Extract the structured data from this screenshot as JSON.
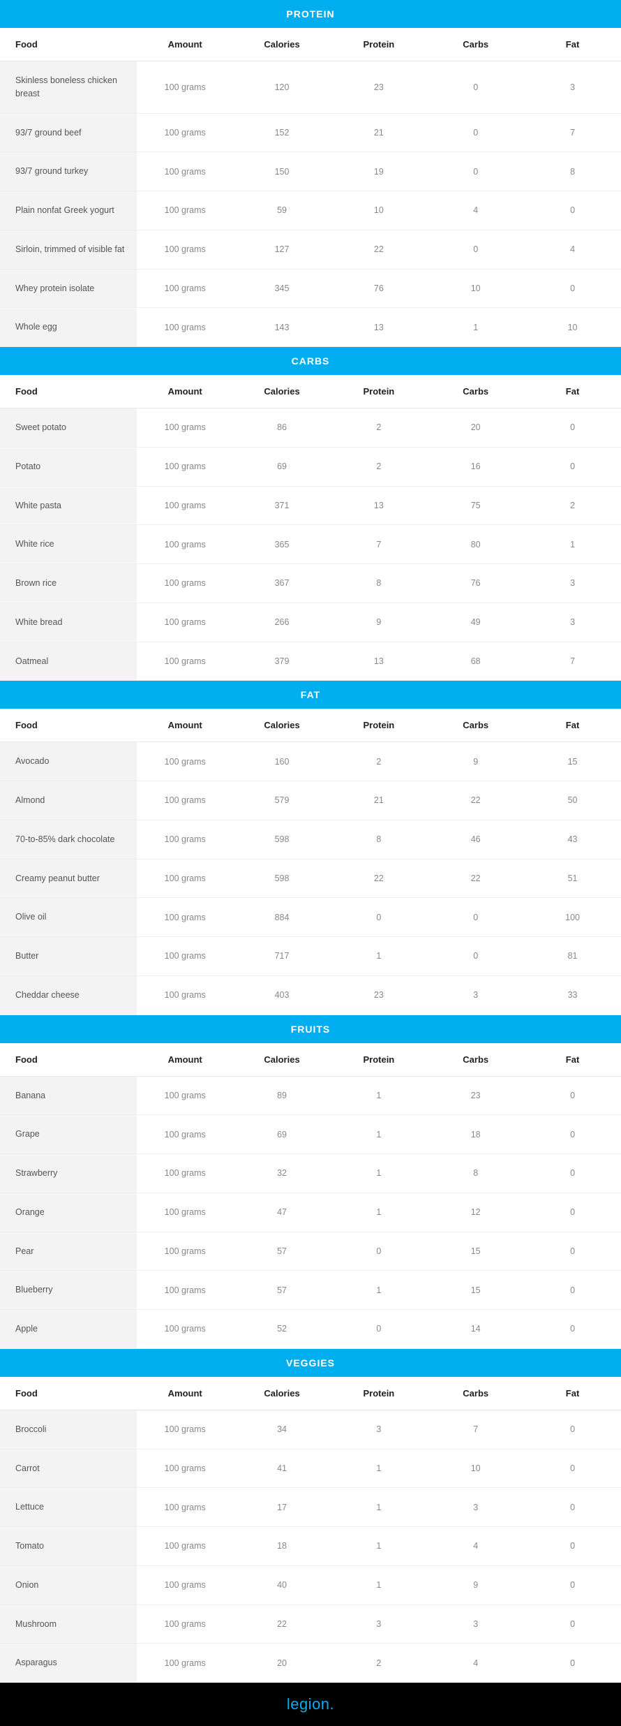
{
  "columns": [
    "Food",
    "Amount",
    "Calories",
    "Protein",
    "Carbs",
    "Fat"
  ],
  "sections": [
    {
      "title": "PROTEIN",
      "rows": [
        [
          "Skinless boneless chicken breast",
          "100 grams",
          "120",
          "23",
          "0",
          "3"
        ],
        [
          "93/7 ground beef",
          "100 grams",
          "152",
          "21",
          "0",
          "7"
        ],
        [
          "93/7 ground turkey",
          "100 grams",
          "150",
          "19",
          "0",
          "8"
        ],
        [
          "Plain nonfat Greek yogurt",
          "100 grams",
          "59",
          "10",
          "4",
          "0"
        ],
        [
          "Sirloin, trimmed of visible fat",
          "100 grams",
          "127",
          "22",
          "0",
          "4"
        ],
        [
          "Whey protein isolate",
          "100 grams",
          "345",
          "76",
          "10",
          "0"
        ],
        [
          "Whole egg",
          "100 grams",
          "143",
          "13",
          "1",
          "10"
        ]
      ]
    },
    {
      "title": "CARBS",
      "rows": [
        [
          "Sweet potato",
          "100 grams",
          "86",
          "2",
          "20",
          "0"
        ],
        [
          "Potato",
          "100 grams",
          "69",
          "2",
          "16",
          "0"
        ],
        [
          "White pasta",
          "100 grams",
          "371",
          "13",
          "75",
          "2"
        ],
        [
          "White rice",
          "100 grams",
          "365",
          "7",
          "80",
          "1"
        ],
        [
          "Brown rice",
          "100 grams",
          "367",
          "8",
          "76",
          "3"
        ],
        [
          "White bread",
          "100 grams",
          "266",
          "9",
          "49",
          "3"
        ],
        [
          "Oatmeal",
          "100 grams",
          "379",
          "13",
          "68",
          "7"
        ]
      ]
    },
    {
      "title": "FAT",
      "rows": [
        [
          "Avocado",
          "100 grams",
          "160",
          "2",
          "9",
          "15"
        ],
        [
          "Almond",
          "100 grams",
          "579",
          "21",
          "22",
          "50"
        ],
        [
          "70-to-85% dark chocolate",
          "100 grams",
          "598",
          "8",
          "46",
          "43"
        ],
        [
          "Creamy peanut butter",
          "100 grams",
          "598",
          "22",
          "22",
          "51"
        ],
        [
          "Olive oil",
          "100 grams",
          "884",
          "0",
          "0",
          "100"
        ],
        [
          "Butter",
          "100 grams",
          "717",
          "1",
          "0",
          "81"
        ],
        [
          "Cheddar cheese",
          "100 grams",
          "403",
          "23",
          "3",
          "33"
        ]
      ]
    },
    {
      "title": "FRUITS",
      "rows": [
        [
          "Banana",
          "100 grams",
          "89",
          "1",
          "23",
          "0"
        ],
        [
          "Grape",
          "100 grams",
          "69",
          "1",
          "18",
          "0"
        ],
        [
          "Strawberry",
          "100 grams",
          "32",
          "1",
          "8",
          "0"
        ],
        [
          "Orange",
          "100 grams",
          "47",
          "1",
          "12",
          "0"
        ],
        [
          "Pear",
          "100 grams",
          "57",
          "0",
          "15",
          "0"
        ],
        [
          "Blueberry",
          "100 grams",
          "57",
          "1",
          "15",
          "0"
        ],
        [
          "Apple",
          "100 grams",
          "52",
          "0",
          "14",
          "0"
        ]
      ]
    },
    {
      "title": "VEGGIES",
      "rows": [
        [
          "Broccoli",
          "100 grams",
          "34",
          "3",
          "7",
          "0"
        ],
        [
          "Carrot",
          "100 grams",
          "41",
          "1",
          "10",
          "0"
        ],
        [
          "Lettuce",
          "100 grams",
          "17",
          "1",
          "3",
          "0"
        ],
        [
          "Tomato",
          "100 grams",
          "18",
          "1",
          "4",
          "0"
        ],
        [
          "Onion",
          "100 grams",
          "40",
          "1",
          "9",
          "0"
        ],
        [
          "Mushroom",
          "100 grams",
          "22",
          "3",
          "3",
          "0"
        ],
        [
          "Asparagus",
          "100 grams",
          "20",
          "2",
          "4",
          "0"
        ]
      ]
    }
  ],
  "footer": {
    "brand": "legion",
    "dot": "."
  },
  "colors": {
    "header_bg": "#00aef0",
    "header_text": "#ffffff",
    "food_cell_bg": "#f3f3f3",
    "value_text": "#888888",
    "food_text": "#555555",
    "border": "#eeeeee",
    "footer_bg": "#000000",
    "footer_text": "#00aef0"
  }
}
